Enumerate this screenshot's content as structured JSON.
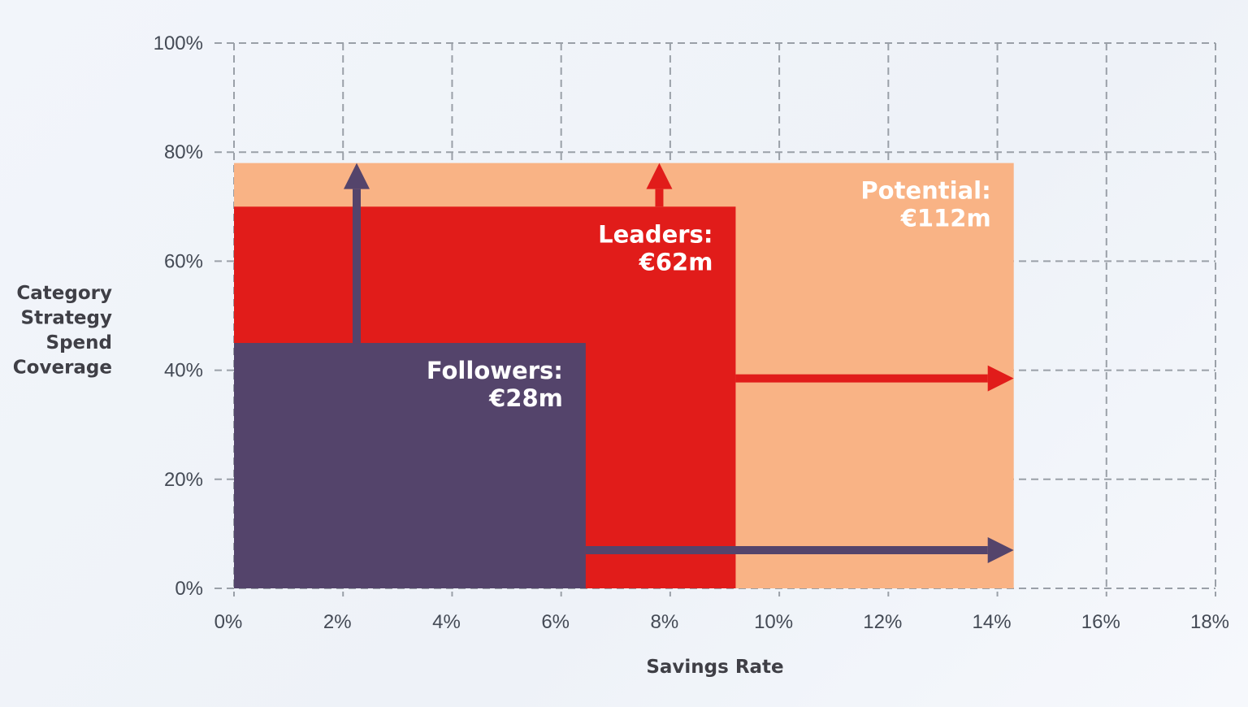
{
  "chart_data": {
    "type": "area",
    "xlabel": "Savings Rate",
    "ylabel": [
      "Category",
      "Strategy",
      "Spend",
      "Coverage"
    ],
    "xlim": [
      0,
      18
    ],
    "ylim": [
      0,
      100
    ],
    "x_ticks": [
      {
        "value": 0,
        "label": "0%"
      },
      {
        "value": 2,
        "label": "2%"
      },
      {
        "value": 4,
        "label": "4%"
      },
      {
        "value": 6,
        "label": "6%"
      },
      {
        "value": 8,
        "label": "8%"
      },
      {
        "value": 10,
        "label": "10%"
      },
      {
        "value": 12,
        "label": "12%"
      },
      {
        "value": 14,
        "label": "14%"
      },
      {
        "value": 16,
        "label": "16%"
      },
      {
        "value": 18,
        "label": "18%"
      }
    ],
    "y_ticks": [
      {
        "value": 0,
        "label": "0%"
      },
      {
        "value": 20,
        "label": "20%"
      },
      {
        "value": 40,
        "label": "40%"
      },
      {
        "value": 60,
        "label": "60%"
      },
      {
        "value": 80,
        "label": "80%"
      },
      {
        "value": 100,
        "label": "100%"
      }
    ],
    "grid": true,
    "regions": [
      {
        "key": "potential",
        "name": "Potential:",
        "value_label": "€112m",
        "savings_rate": 14.3,
        "coverage": 78,
        "color": "#f9b385"
      },
      {
        "key": "leaders",
        "name": "Leaders:",
        "value_label": "€62m",
        "savings_rate": 9.2,
        "coverage": 70,
        "color": "#e11c1a"
      },
      {
        "key": "followers",
        "name": "Followers:",
        "value_label": "€28m",
        "savings_rate": 6.45,
        "coverage": 45,
        "color": "#54446b"
      }
    ],
    "arrows": [
      {
        "name": "followers-coverage-arrow",
        "from": [
          2.25,
          45
        ],
        "to": [
          2.25,
          78
        ],
        "color": "#54446b"
      },
      {
        "name": "followers-savings-arrow",
        "from": [
          6.45,
          7
        ],
        "to": [
          14.3,
          7
        ],
        "color": "#54446b"
      },
      {
        "name": "leaders-coverage-arrow",
        "from": [
          7.8,
          70
        ],
        "to": [
          7.8,
          78
        ],
        "color": "#e11c1a"
      },
      {
        "name": "leaders-savings-arrow",
        "from": [
          9.2,
          38.5
        ],
        "to": [
          14.3,
          38.5
        ],
        "color": "#e11c1a"
      }
    ]
  }
}
